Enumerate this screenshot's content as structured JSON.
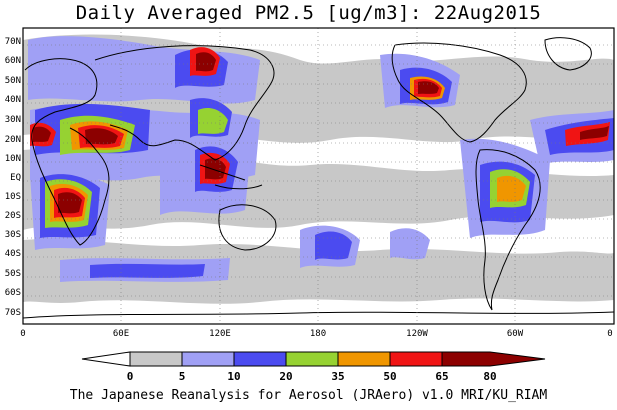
{
  "title": "Daily Averaged PM2.5 [ug/m3]: 22Aug2015",
  "footer": "The Japanese Reanalysis for Aerosol (JRAero) v1.0 MRI/KU_RIAM",
  "latitude_labels": [
    "70N",
    "60N",
    "50N",
    "40N",
    "30N",
    "20N",
    "10N",
    "EQ",
    "10S",
    "20S",
    "30S",
    "40S",
    "50S",
    "60S",
    "70S"
  ],
  "longitude_labels": [
    "0",
    "60E",
    "120E",
    "180",
    "120W",
    "60W",
    "0"
  ],
  "colorbar": {
    "ticks": [
      "0",
      "5",
      "10",
      "20",
      "35",
      "50",
      "65",
      "80"
    ],
    "colors": [
      "#ffffff",
      "#c8c8c8",
      "#a0a0f5",
      "#4b4bf0",
      "#96d232",
      "#f09600",
      "#f01414",
      "#8c0000"
    ]
  },
  "map_colors": {
    "land_outline": "#000000",
    "ocean": "#ffffff",
    "grid": "#777777"
  }
}
